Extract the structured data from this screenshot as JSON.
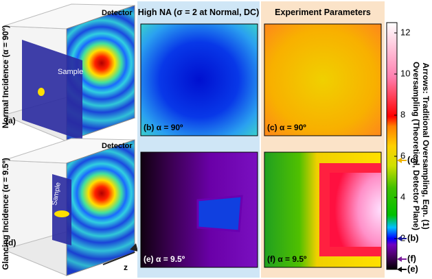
{
  "left_panel": {
    "top": {
      "label": "Normal Incidence (α = 90º)",
      "detector": "Detector",
      "sample": "Sample",
      "panel": "(a)"
    },
    "bottom": {
      "label": "Glancing Incidence (α = 9.5º)",
      "detector": "Detector",
      "sample": "Sample",
      "panel": "(d)"
    },
    "axis": "z"
  },
  "columns": [
    {
      "title": "High NA (σ = 2 at Normal, DC)",
      "panels": [
        "(b) α = 90º",
        "(e) α = 9.5º"
      ]
    },
    {
      "title": "Experiment Parameters",
      "panels": [
        "(c) α = 90º",
        "(f) α = 9.5º"
      ]
    }
  ],
  "colorbar": {
    "label": "Oversampling (Theoretical, Detector Plane)",
    "sublabel": "Arrows: Traditional Oversampling, Eqn. (1)",
    "lim": [
      0.5,
      12.5
    ],
    "ticks": [
      2,
      4,
      6,
      8,
      10,
      12
    ],
    "arrows": [
      {
        "label": "(c)",
        "value": 5.8,
        "color": "#f0b400"
      },
      {
        "label": "(b)",
        "value": 2,
        "color": "#1a1a9a"
      },
      {
        "label": "(f)",
        "value": 1,
        "color": "#7a1a9a"
      },
      {
        "label": "(e)",
        "value": 0.5,
        "color": "#000000"
      }
    ]
  }
}
